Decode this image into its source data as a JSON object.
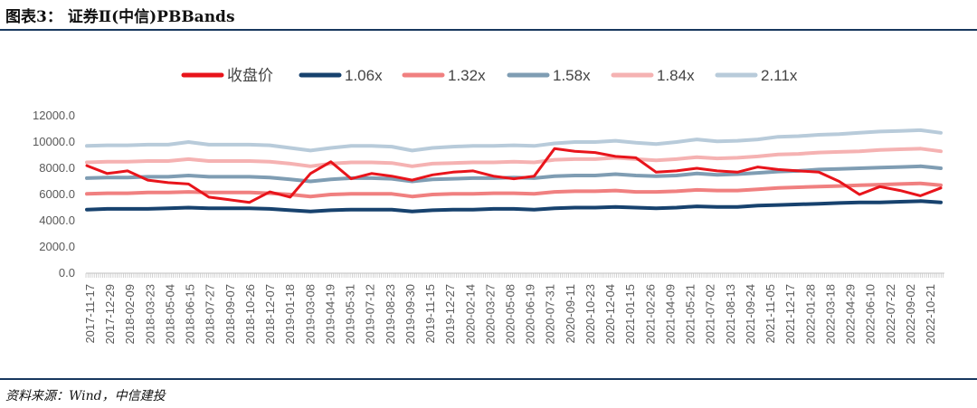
{
  "header": {
    "figure_title": "图表3：  证券Ⅱ(中信)PBBands"
  },
  "footer": {
    "source": "资料来源：Wind，中信建投"
  },
  "chart_data": {
    "type": "line",
    "title": "证券Ⅱ(中信)PBBands",
    "ylim": [
      0,
      12000
    ],
    "y_ticks": [
      "12000.0",
      "10000.0",
      "8000.0",
      "6000.0",
      "4000.0",
      "2000.0",
      "0.0"
    ],
    "y_tick_values": [
      12000,
      10000,
      8000,
      6000,
      4000,
      2000,
      0
    ],
    "grid": false,
    "legend_position": "top",
    "x_tick_labels": [
      "2017-11-17",
      "2017-12-29",
      "2018-02-09",
      "2018-03-23",
      "2018-05-04",
      "2018-06-15",
      "2018-07-27",
      "2018-09-07",
      "2018-10-26",
      "2018-12-07",
      "2019-01-18",
      "2019-03-08",
      "2019-04-19",
      "2019-05-31",
      "2019-07-12",
      "2019-08-23",
      "2019-09-30",
      "2019-11-15",
      "2019-12-27",
      "2020-02-14",
      "2020-03-27",
      "2020-05-08",
      "2020-06-19",
      "2020-07-31",
      "2020-09-11",
      "2020-10-23",
      "2020-12-04",
      "2021-01-15",
      "2021-02-26",
      "2021-04-09",
      "2021-05-21",
      "2021-07-02",
      "2021-08-13",
      "2021-09-24",
      "2021-11-05",
      "2021-12-17",
      "2022-01-28",
      "2022-03-18",
      "2022-04-29",
      "2022-06-10",
      "2022-07-22",
      "2022-09-02",
      "2022-10-21"
    ],
    "series": [
      {
        "name": "收盘价",
        "color": "#e8141b",
        "values": [
          8200,
          7600,
          7800,
          7100,
          6900,
          6800,
          5800,
          5600,
          5400,
          6200,
          5800,
          7600,
          8500,
          7200,
          7600,
          7400,
          7100,
          7500,
          7700,
          7800,
          7400,
          7200,
          7400,
          9500,
          9300,
          9200,
          8900,
          8800,
          7700,
          7800,
          8000,
          7800,
          7700,
          8100,
          7900,
          7800,
          7700,
          7000,
          6000,
          6600,
          6300,
          5900,
          6500
        ]
      },
      {
        "name": "1.06x",
        "color": "#17426e",
        "values": [
          4850,
          4900,
          4900,
          4900,
          4950,
          5000,
          4950,
          4950,
          4950,
          4900,
          4800,
          4700,
          4800,
          4850,
          4850,
          4850,
          4700,
          4800,
          4850,
          4850,
          4900,
          4900,
          4850,
          4950,
          5000,
          5000,
          5050,
          5000,
          4950,
          5000,
          5100,
          5050,
          5050,
          5150,
          5200,
          5250,
          5300,
          5350,
          5400,
          5400,
          5450,
          5500,
          5400
        ]
      },
      {
        "name": "1.32x",
        "color": "#f08080",
        "values": [
          6050,
          6100,
          6100,
          6150,
          6150,
          6200,
          6150,
          6150,
          6150,
          6100,
          6000,
          5850,
          6000,
          6050,
          6050,
          6050,
          5850,
          6000,
          6050,
          6050,
          6100,
          6100,
          6050,
          6200,
          6250,
          6250,
          6300,
          6200,
          6200,
          6250,
          6350,
          6300,
          6300,
          6400,
          6500,
          6550,
          6600,
          6650,
          6700,
          6750,
          6800,
          6850,
          6700
        ]
      },
      {
        "name": "1.58x",
        "color": "#7f9db3",
        "values": [
          7250,
          7300,
          7300,
          7350,
          7350,
          7450,
          7350,
          7350,
          7350,
          7300,
          7150,
          7000,
          7150,
          7250,
          7250,
          7200,
          7000,
          7150,
          7200,
          7250,
          7250,
          7300,
          7250,
          7400,
          7450,
          7450,
          7550,
          7450,
          7400,
          7450,
          7600,
          7500,
          7550,
          7650,
          7750,
          7800,
          7900,
          7950,
          8000,
          8050,
          8100,
          8150,
          8000
        ]
      },
      {
        "name": "1.84x",
        "color": "#f5b2b2",
        "values": [
          8450,
          8500,
          8500,
          8550,
          8550,
          8700,
          8550,
          8550,
          8550,
          8500,
          8350,
          8150,
          8350,
          8450,
          8450,
          8400,
          8150,
          8350,
          8400,
          8450,
          8450,
          8500,
          8450,
          8650,
          8700,
          8700,
          8800,
          8700,
          8600,
          8700,
          8850,
          8750,
          8800,
          8900,
          9050,
          9100,
          9200,
          9250,
          9300,
          9400,
          9450,
          9500,
          9300
        ]
      },
      {
        "name": "2.11x",
        "color": "#b8cbda",
        "values": [
          9700,
          9750,
          9750,
          9800,
          9800,
          10000,
          9800,
          9800,
          9800,
          9750,
          9550,
          9350,
          9550,
          9700,
          9700,
          9650,
          9350,
          9550,
          9650,
          9700,
          9700,
          9750,
          9700,
          9900,
          10000,
          10000,
          10100,
          9950,
          9850,
          10000,
          10200,
          10050,
          10100,
          10200,
          10400,
          10450,
          10550,
          10600,
          10700,
          10800,
          10850,
          10900,
          10700
        ]
      }
    ]
  }
}
